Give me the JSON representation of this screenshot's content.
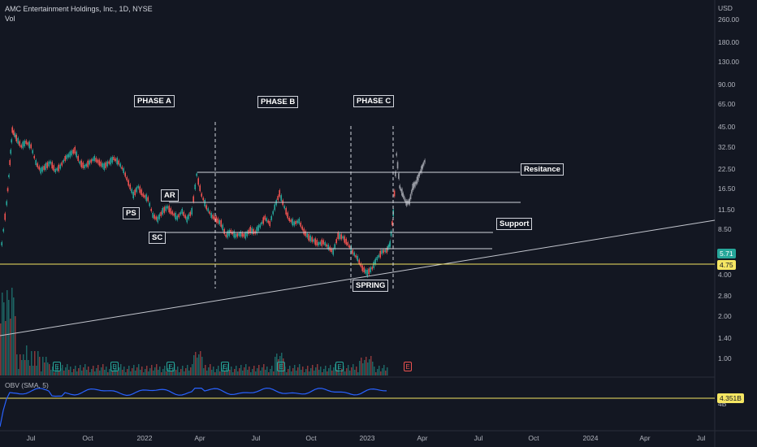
{
  "header": {
    "title": "AMC Entertainment Holdings, Inc., 1D, NYSE",
    "volume_label": "Vol"
  },
  "price_axis": {
    "currency": "USD",
    "ticks": [
      "260.00",
      "180.00",
      "130.00",
      "90.00",
      "65.00",
      "45.00",
      "32.50",
      "22.50",
      "16.50",
      "11.50",
      "8.50",
      "4.00",
      "2.80",
      "2.00",
      "1.40",
      "1.00"
    ],
    "current_price": "5.71",
    "support_price": "4.75",
    "current_color": "#26a69a",
    "support_color": "#f5e663"
  },
  "annotations": {
    "phase_a": "PHASE A",
    "phase_b": "PHASE B",
    "phase_c": "PHASE C",
    "ps": "PS",
    "ar": "AR",
    "sc": "SC",
    "spring": "SPRING",
    "resistance": "Resitance",
    "support": "Support"
  },
  "obv": {
    "label": "OBV (SMA, 5)",
    "value": "4.351B",
    "scale_tick": "4B"
  },
  "time_axis": {
    "ticks": [
      "Jul",
      "Oct",
      "2022",
      "Apr",
      "Jul",
      "Oct",
      "2023",
      "Apr",
      "Jul",
      "Oct",
      "2024",
      "Apr",
      "Jul"
    ]
  },
  "earnings_marker": "E",
  "colors": {
    "up": "#26a69a",
    "down": "#ef5350",
    "obv_line": "#2962ff",
    "trendline": "#b2b5be",
    "support_line": "#f5e663"
  },
  "icons": [
    "earnings-icon"
  ]
}
